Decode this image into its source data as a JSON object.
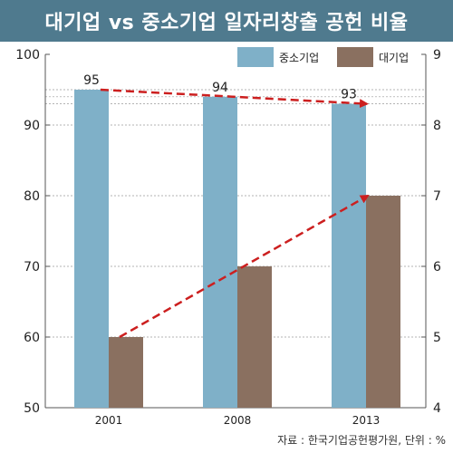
{
  "title": "대기업 vs 중소기업 일자리창출 공헌 비율",
  "source": "자료 : 한국기업공헌평가원, 단위 : %",
  "colors": {
    "sme": "#7fb0c8",
    "large": "#8a7060",
    "arrow": "#cc1f1f",
    "title_bg": "#4f7a8e"
  },
  "chart_data": {
    "type": "bar",
    "categories": [
      "2001",
      "2008",
      "2013"
    ],
    "series": [
      {
        "name": "중소기업",
        "axis": "left",
        "values": [
          95,
          94,
          93
        ]
      },
      {
        "name": "대기업",
        "axis": "right",
        "values": [
          5,
          6,
          7
        ]
      }
    ],
    "y_left": {
      "min": 50,
      "max": 100,
      "ticks": [
        "50",
        "60",
        "70",
        "80",
        "90",
        "100"
      ]
    },
    "y_right": {
      "min": 4,
      "max": 9,
      "ticks": [
        "4",
        "5",
        "6",
        "7",
        "8",
        "9"
      ]
    },
    "data_labels": [
      "95",
      "94",
      "93"
    ],
    "legend_position": "top-right",
    "annotations": "dashed trend arrows over both series"
  }
}
